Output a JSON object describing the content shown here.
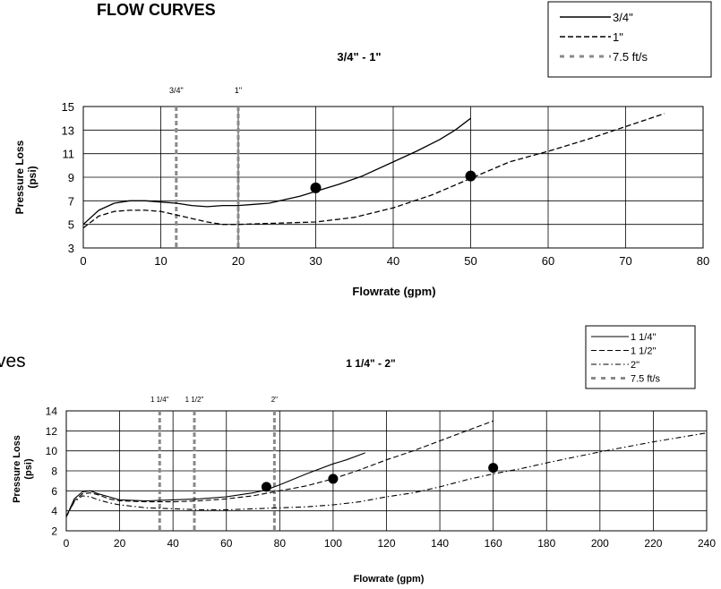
{
  "page": {
    "heading": "FLOW CURVES",
    "fragment": "ves"
  },
  "chart_data": [
    {
      "type": "line",
      "title": "3/4\" - 1\"",
      "xlabel": "Flowrate (gpm)",
      "ylabel": "Pressure Loss (psi)",
      "ylabel_lines": [
        "Pressure Loss",
        "(psi)"
      ],
      "xlim": [
        0,
        80
      ],
      "ylim": [
        3,
        15
      ],
      "xticks": [
        0,
        10,
        20,
        30,
        40,
        50,
        60,
        70,
        80
      ],
      "yticks": [
        3,
        5,
        7,
        9,
        11,
        13,
        15
      ],
      "grid": true,
      "legend_position": "top-right",
      "legend": [
        "3/4\"",
        "1\"",
        "7.5 ft/s"
      ],
      "series": [
        {
          "name": "3/4\"",
          "style": "solid",
          "x": [
            0,
            2,
            4,
            6,
            8,
            10,
            12,
            14,
            16,
            18,
            20,
            22,
            24,
            26,
            28,
            30,
            33,
            36,
            40,
            43,
            46,
            48,
            50
          ],
          "y": [
            5.0,
            6.2,
            6.8,
            7.0,
            7.0,
            6.9,
            6.8,
            6.6,
            6.5,
            6.6,
            6.6,
            6.7,
            6.8,
            7.1,
            7.4,
            7.8,
            8.4,
            9.1,
            10.3,
            11.2,
            12.2,
            13.0,
            14.0
          ]
        },
        {
          "name": "1\"",
          "style": "dashed",
          "x": [
            0,
            2,
            4,
            6,
            8,
            10,
            12,
            14,
            16,
            18,
            20,
            25,
            30,
            35,
            40,
            45,
            50,
            55,
            60,
            65,
            70,
            75
          ],
          "y": [
            4.7,
            5.7,
            6.1,
            6.2,
            6.2,
            6.1,
            5.8,
            5.5,
            5.2,
            5.0,
            5.0,
            5.1,
            5.2,
            5.6,
            6.4,
            7.5,
            8.9,
            10.3,
            11.2,
            12.2,
            13.3,
            14.4
          ]
        }
      ],
      "markers": [
        {
          "x": 30,
          "y": 8.1
        },
        {
          "x": 50,
          "y": 9.1
        }
      ],
      "velocity_lines": [
        {
          "x": 12,
          "label": "3/4\""
        },
        {
          "x": 20,
          "label": "1\""
        }
      ],
      "velocity_name": "7.5 ft/s"
    },
    {
      "type": "line",
      "title": "1 1/4\" - 2\"",
      "xlabel": "Flowrate (gpm)",
      "ylabel": "Pressure Loss (psi)",
      "ylabel_lines": [
        "Pressure Loss",
        "(psi)"
      ],
      "xlim": [
        0,
        240
      ],
      "ylim": [
        2,
        14
      ],
      "xticks": [
        0,
        20,
        40,
        60,
        80,
        100,
        120,
        140,
        160,
        180,
        200,
        220,
        240
      ],
      "yticks": [
        2,
        4,
        6,
        8,
        10,
        12,
        14
      ],
      "grid": true,
      "legend_position": "top-right",
      "legend": [
        "1 1/4\"",
        "1 1/2\"",
        "2\"",
        "7.5 ft/s"
      ],
      "series": [
        {
          "name": "1 1/4\"",
          "style": "solid",
          "x": [
            0,
            3,
            6,
            9,
            12,
            16,
            20,
            30,
            40,
            50,
            60,
            70,
            75,
            80,
            90,
            100,
            105,
            112
          ],
          "y": [
            3.4,
            5.2,
            5.9,
            6.0,
            5.7,
            5.4,
            5.1,
            5.0,
            5.1,
            5.2,
            5.4,
            5.8,
            6.1,
            6.6,
            7.7,
            8.7,
            9.1,
            9.8
          ]
        },
        {
          "name": "1 1/2\"",
          "style": "dashed",
          "x": [
            0,
            3,
            6,
            9,
            12,
            16,
            20,
            30,
            40,
            50,
            60,
            70,
            80,
            90,
            100,
            110,
            120,
            130,
            140,
            150,
            160
          ],
          "y": [
            3.4,
            5.0,
            5.7,
            5.8,
            5.6,
            5.2,
            5.0,
            4.9,
            4.9,
            5.0,
            5.2,
            5.5,
            6.0,
            6.5,
            7.2,
            8.1,
            9.1,
            10.0,
            11.0,
            12.0,
            13.0
          ]
        },
        {
          "name": "2\"",
          "style": "dashdot",
          "x": [
            0,
            3,
            6,
            9,
            12,
            16,
            20,
            30,
            40,
            50,
            60,
            70,
            80,
            90,
            100,
            110,
            120,
            130,
            140,
            150,
            160,
            170,
            180,
            200,
            220,
            240
          ],
          "y": [
            3.4,
            4.9,
            5.5,
            5.4,
            5.1,
            4.8,
            4.6,
            4.3,
            4.2,
            4.1,
            4.1,
            4.2,
            4.3,
            4.4,
            4.6,
            4.9,
            5.4,
            5.8,
            6.4,
            7.1,
            7.7,
            8.2,
            8.8,
            9.9,
            10.9,
            11.8
          ]
        }
      ],
      "markers": [
        {
          "x": 75,
          "y": 6.4
        },
        {
          "x": 100,
          "y": 7.2
        },
        {
          "x": 160,
          "y": 8.3
        }
      ],
      "velocity_lines": [
        {
          "x": 35,
          "label": "1 1/4\""
        },
        {
          "x": 48,
          "label": "1 1/2\""
        },
        {
          "x": 78,
          "label": "2\""
        }
      ],
      "velocity_name": "7.5 ft/s"
    }
  ]
}
